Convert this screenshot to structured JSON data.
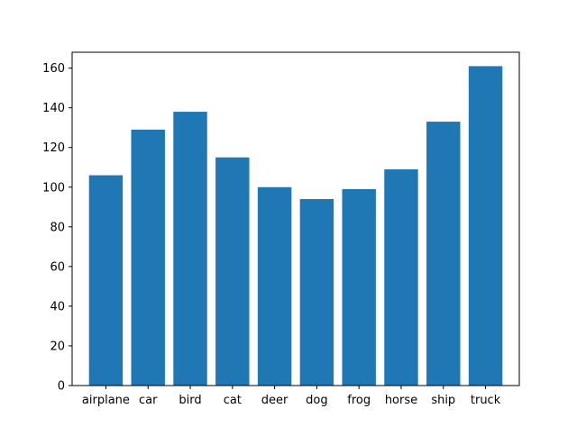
{
  "chart_data": {
    "type": "bar",
    "categories": [
      "airplane",
      "car",
      "bird",
      "cat",
      "deer",
      "dog",
      "frog",
      "horse",
      "ship",
      "truck"
    ],
    "values": [
      106,
      129,
      138,
      115,
      100,
      94,
      99,
      109,
      133,
      161
    ],
    "title": "",
    "xlabel": "",
    "ylabel": "",
    "ylim": [
      0,
      168
    ],
    "yticks": [
      0,
      20,
      40,
      60,
      80,
      100,
      120,
      140,
      160
    ],
    "grid": false,
    "legend": "none",
    "bar_color": "#1f77b4"
  }
}
